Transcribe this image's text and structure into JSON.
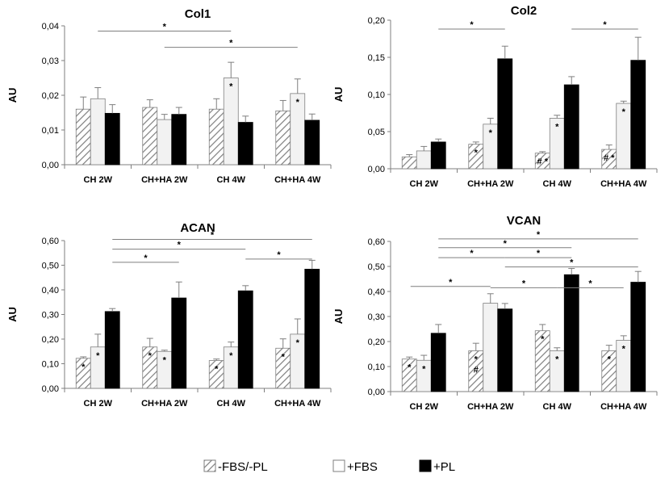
{
  "legend": [
    {
      "name": "-FBS/-PL",
      "style": "hatch"
    },
    {
      "name": "+FBS",
      "style": "white"
    },
    {
      "name": "+PL",
      "style": "black"
    }
  ],
  "chart_data": [
    {
      "type": "bar",
      "title": "Col1",
      "ylabel": "AU",
      "ylim": [
        0,
        0.04
      ],
      "ytick_labels": [
        "0,00",
        "0,01",
        "0,02",
        "0,03",
        "0,04"
      ],
      "categories": [
        "CH 2W",
        "CH+HA 2W",
        "CH 4W",
        "CH+HA 4W"
      ],
      "series": [
        {
          "name": "-FBS/-PL",
          "values": [
            0.016,
            0.0165,
            0.016,
            0.0155
          ],
          "errors": [
            0.0035,
            0.0022,
            0.003,
            0.003
          ],
          "marks": [
            "",
            "",
            "",
            ""
          ]
        },
        {
          "name": "+FBS",
          "values": [
            0.019,
            0.013,
            0.025,
            0.0205
          ],
          "errors": [
            0.0032,
            0.0015,
            0.0045,
            0.0042
          ],
          "marks": [
            "",
            "",
            "*",
            "*"
          ]
        },
        {
          "name": "+PL",
          "values": [
            0.0148,
            0.0145,
            0.0122,
            0.0128
          ],
          "errors": [
            0.0025,
            0.002,
            0.0018,
            0.0018
          ],
          "marks": [
            "",
            "",
            "",
            ""
          ]
        }
      ],
      "significance": [
        {
          "from": [
            0,
            1
          ],
          "to": [
            2,
            1
          ],
          "label": "*",
          "level": 0.0385
        },
        {
          "from": [
            1,
            1
          ],
          "to": [
            3,
            1
          ],
          "label": "*",
          "level": 0.0338
        }
      ]
    },
    {
      "type": "bar",
      "title": "Col2",
      "ylabel": "AU",
      "ylim": [
        0,
        0.2
      ],
      "ytick_labels": [
        "0,00",
        "0,05",
        "0,10",
        "0,15",
        "0,20"
      ],
      "categories": [
        "CH 2W",
        "CH+HA 2W",
        "CH 4W",
        "CH+HA 4W"
      ],
      "series": [
        {
          "name": "-FBS/-PL",
          "values": [
            0.016,
            0.033,
            0.021,
            0.026
          ],
          "errors": [
            0.003,
            0.003,
            0.002,
            0.006
          ],
          "marks": [
            "",
            "*",
            "# *",
            "# *"
          ]
        },
        {
          "name": "+FBS",
          "values": [
            0.024,
            0.06,
            0.068,
            0.088
          ],
          "errors": [
            0.006,
            0.008,
            0.004,
            0.003
          ],
          "marks": [
            "",
            "*",
            "*",
            "*"
          ]
        },
        {
          "name": "+PL",
          "values": [
            0.036,
            0.148,
            0.113,
            0.146
          ],
          "errors": [
            0.004,
            0.017,
            0.011,
            0.031
          ],
          "marks": [
            "",
            "",
            "",
            ""
          ]
        }
      ],
      "significance": [
        {
          "from": [
            0,
            2
          ],
          "to": [
            1,
            2
          ],
          "label": "*",
          "level": 0.188
        },
        {
          "from": [
            2,
            2
          ],
          "to": [
            3,
            2
          ],
          "label": "*",
          "level": 0.188
        }
      ]
    },
    {
      "type": "bar",
      "title": "ACAN",
      "ylabel": "AU",
      "ylim": [
        0,
        0.6
      ],
      "ytick_labels": [
        "0,00",
        "0,10",
        "0,20",
        "0,30",
        "0,40",
        "0,50",
        "0,60"
      ],
      "categories": [
        "CH 2W",
        "CH+HA 2W",
        "CH 4W",
        "CH+HA 4W"
      ],
      "series": [
        {
          "name": "-FBS/-PL",
          "values": [
            0.122,
            0.168,
            0.113,
            0.163
          ],
          "errors": [
            0.006,
            0.035,
            0.006,
            0.038
          ],
          "marks": [
            "*",
            "*",
            "*",
            "*"
          ]
        },
        {
          "name": "+FBS",
          "values": [
            0.168,
            0.15,
            0.168,
            0.22
          ],
          "errors": [
            0.052,
            0.005,
            0.02,
            0.062
          ],
          "marks": [
            "*",
            "*",
            "*",
            "*"
          ]
        },
        {
          "name": "+PL",
          "values": [
            0.312,
            0.367,
            0.396,
            0.484
          ],
          "errors": [
            0.012,
            0.065,
            0.021,
            0.036
          ],
          "marks": [
            "",
            "",
            "",
            ""
          ]
        }
      ],
      "significance": [
        {
          "from": [
            0,
            2
          ],
          "to": [
            3,
            2
          ],
          "label": "*",
          "level": 0.605
        },
        {
          "from": [
            0,
            2
          ],
          "to": [
            2,
            2
          ],
          "label": "*",
          "level": 0.565
        },
        {
          "from": [
            0,
            2
          ],
          "to": [
            1,
            2
          ],
          "label": "*",
          "level": 0.512
        },
        {
          "from": [
            2,
            2
          ],
          "to": [
            3,
            2
          ],
          "label": "*",
          "level": 0.525
        }
      ]
    },
    {
      "type": "bar",
      "title": "VCAN",
      "ylabel": "AU",
      "ylim": [
        0,
        0.6
      ],
      "ytick_labels": [
        "0,00",
        "0,10",
        "0,20",
        "0,30",
        "0,40",
        "0,50",
        "0,60"
      ],
      "categories": [
        "CH 2W",
        "CH+HA 2W",
        "CH 4W",
        "CH+HA 4W"
      ],
      "series": [
        {
          "name": "-FBS/-PL",
          "values": [
            0.13,
            0.163,
            0.243,
            0.163
          ],
          "errors": [
            0.008,
            0.03,
            0.025,
            0.022
          ],
          "marks": [
            "*",
            "* #",
            "*",
            "*"
          ]
        },
        {
          "name": "+FBS",
          "values": [
            0.125,
            0.353,
            0.163,
            0.205
          ],
          "errors": [
            0.02,
            0.038,
            0.012,
            0.018
          ],
          "marks": [
            "*",
            "",
            "*",
            "*"
          ]
        },
        {
          "name": "+PL",
          "values": [
            0.233,
            0.33,
            0.467,
            0.437
          ],
          "errors": [
            0.035,
            0.022,
            0.025,
            0.043
          ],
          "marks": [
            "",
            "",
            "",
            ""
          ]
        }
      ],
      "significance": [
        {
          "from": [
            0,
            2
          ],
          "to": [
            3,
            2
          ],
          "label": "*",
          "level": 0.61
        },
        {
          "from": [
            0,
            2
          ],
          "to": [
            2,
            2
          ],
          "label": "*",
          "level": 0.575
        },
        {
          "from": [
            0,
            2
          ],
          "to": [
            1,
            2
          ],
          "label": "*",
          "level": 0.535
        },
        {
          "from": [
            1,
            2
          ],
          "to": [
            2,
            2
          ],
          "label": "*",
          "level": 0.535
        },
        {
          "from": [
            1,
            2
          ],
          "to": [
            3,
            2
          ],
          "label": "*",
          "level": 0.498
        },
        {
          "from": [
            -0.2,
            1
          ],
          "to": [
            1,
            1
          ],
          "label": "*",
          "level": 0.42
        },
        {
          "from": [
            1,
            1
          ],
          "to": [
            2,
            1
          ],
          "label": "*",
          "level": 0.415
        },
        {
          "from": [
            2,
            1
          ],
          "to": [
            3,
            1
          ],
          "label": "*",
          "level": 0.415
        }
      ]
    }
  ]
}
